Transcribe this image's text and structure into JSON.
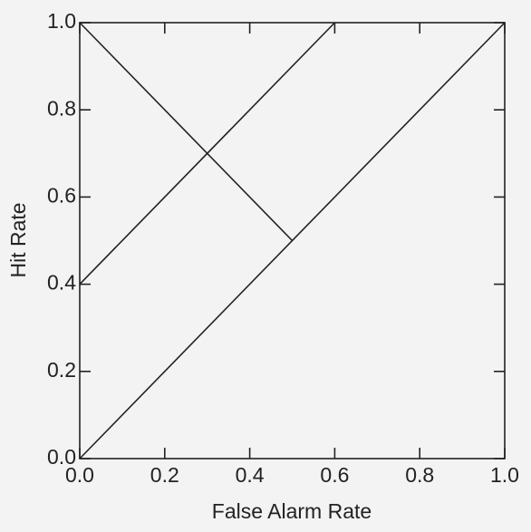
{
  "chart_data": {
    "type": "line",
    "xlabel": "False Alarm Rate",
    "ylabel": "Hit Rate",
    "series": [
      {
        "color": "#222222",
        "x": [
          0,
          1
        ],
        "values": [
          0,
          1
        ]
      },
      {
        "color": "#222222",
        "x": [
          0,
          0.5
        ],
        "values": [
          1,
          0.5
        ]
      },
      {
        "color": "#222222",
        "x": [
          0,
          0.6
        ],
        "values": [
          0.4,
          1
        ]
      }
    ],
    "xlim": [
      0,
      1
    ],
    "ylim": [
      0,
      1
    ],
    "xticks": [
      {
        "value": 0,
        "label": "0.0"
      },
      {
        "value": 0.2,
        "label": "0.2"
      },
      {
        "value": 0.4,
        "label": "0.4"
      },
      {
        "value": 0.6,
        "label": "0.6"
      },
      {
        "value": 0.8,
        "label": "0.8"
      },
      {
        "value": 1,
        "label": "1.0"
      }
    ],
    "yticks": [
      {
        "value": 0,
        "label": "0.0"
      },
      {
        "value": 0.2,
        "label": "0.2"
      },
      {
        "value": 0.4,
        "label": "0.4"
      },
      {
        "value": 0.6,
        "label": "0.6"
      },
      {
        "value": 0.8,
        "label": "0.8"
      },
      {
        "value": 1,
        "label": "1.0"
      }
    ],
    "grid": false
  }
}
